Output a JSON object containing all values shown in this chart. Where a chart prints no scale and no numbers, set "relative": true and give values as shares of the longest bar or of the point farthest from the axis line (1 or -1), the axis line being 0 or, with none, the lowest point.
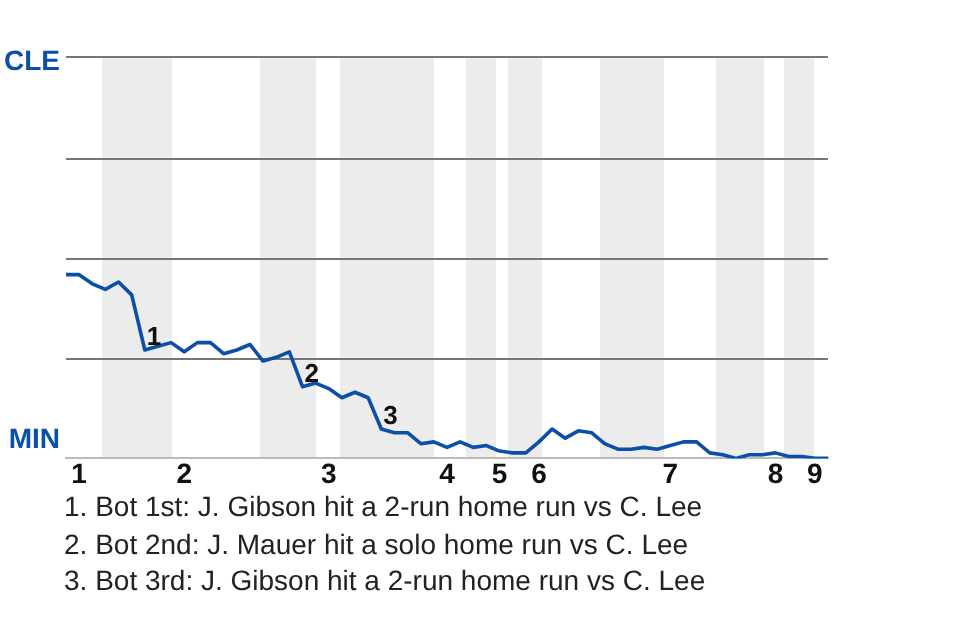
{
  "chart_data": {
    "type": "line",
    "relative": true,
    "categories": [
      null,
      "1",
      null,
      null,
      null,
      null,
      null,
      null,
      null,
      "2",
      null,
      null,
      null,
      null,
      null,
      null,
      null,
      null,
      null,
      null,
      "3",
      null,
      null,
      null,
      null,
      null,
      null,
      null,
      null,
      "4",
      null,
      null,
      null,
      "5",
      null,
      null,
      "6",
      null,
      null,
      null,
      null,
      null,
      null,
      null,
      null,
      null,
      "7",
      null,
      null,
      null,
      null,
      null,
      null,
      null,
      "8",
      null,
      null,
      "9",
      null
    ],
    "legend": false,
    "marker": "none",
    "ref_lines": [
      {
        "axis": "y",
        "value": 0.55,
        "color": "#777777"
      },
      {
        "axis": "y",
        "value": 1.09,
        "color": "#777777"
      },
      {
        "axis": "y",
        "value": 1.64,
        "color": "#777777"
      },
      {
        "axis": "y",
        "value": 2.19,
        "color": "#777777"
      }
    ],
    "series": [
      {
        "color": "#0b4fa8",
        "values": [
          1,
          1,
          0.95,
          0.92,
          0.96,
          0.89,
          0.59,
          0.61,
          0.63,
          0.58,
          0.63,
          0.63,
          0.57,
          0.59,
          0.62,
          0.53,
          0.55,
          0.58,
          0.39,
          0.41,
          0.38,
          0.33,
          0.36,
          0.33,
          0.16,
          0.14,
          0.14,
          0.08,
          0.09,
          0.06,
          0.09,
          0.06,
          0.07,
          0.04,
          0.03,
          0.03,
          0.09,
          0.16,
          0.11,
          0.15,
          0.14,
          0.08,
          0.05,
          0.05,
          0.06,
          0.05,
          0.07,
          0.09,
          0.09,
          0.03,
          0.02,
          0,
          0.02,
          0.02,
          0.03,
          0.01,
          0.01,
          0,
          0
        ]
      }
    ],
    "annotations": [
      "CLE",
      "MIN",
      {
        "text": "1",
        "y": 0.59
      },
      {
        "text": "2",
        "y": 0.39
      },
      {
        "text": "3",
        "y": 0.16
      },
      "1. Bot 1st: J. Gibson hit a 2-run home run vs C. Lee",
      "2. Bot 2nd: J. Mauer hit a solo home run vs C. Lee",
      "3. Bot 3rd: J. Gibson hit a 2-run home run vs C. Lee"
    ]
  }
}
